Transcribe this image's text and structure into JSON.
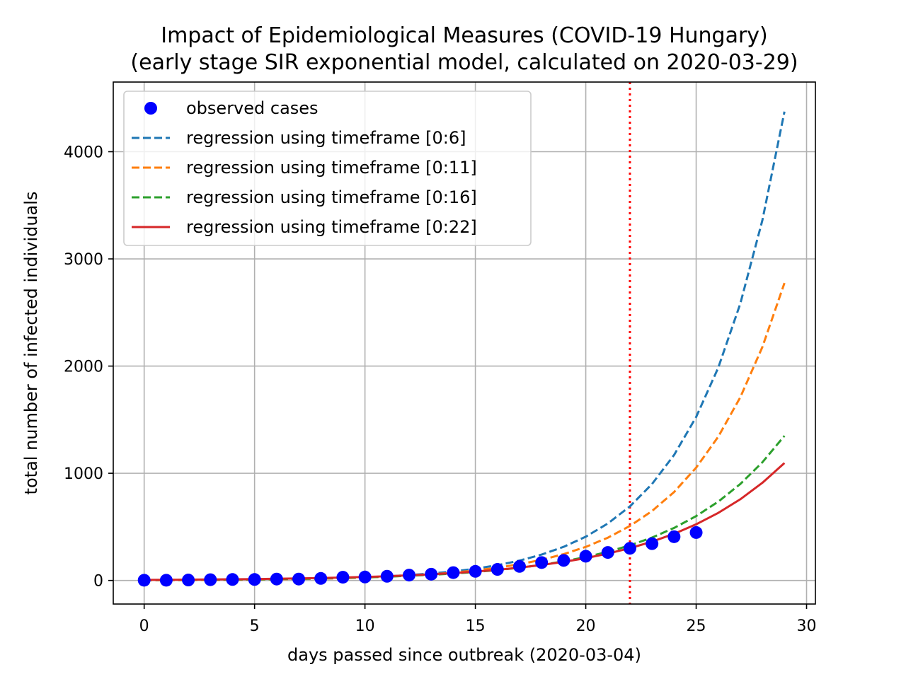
{
  "chart_data": {
    "type": "line",
    "title_line1": "Impact of Epidemiological Measures (COVID-19 Hungary)",
    "title_line2": "(early stage SIR exponential model, calculated on 2020-03-29)",
    "xlabel": "days passed since outbreak (2020-03-04)",
    "ylabel": "total number of infected individuals",
    "xlim": [
      -1.4,
      30.4
    ],
    "ylim": [
      -220,
      4650
    ],
    "xticks": [
      0,
      5,
      10,
      15,
      20,
      25,
      30
    ],
    "yticks": [
      0,
      1000,
      2000,
      3000,
      4000
    ],
    "grid": true,
    "legend_position": "upper-left",
    "vertical_marker": {
      "x": 22,
      "color": "#ff0000",
      "style": "dotted"
    },
    "observed": {
      "name": "observed cases",
      "color": "#0000ff",
      "x": [
        0,
        1,
        2,
        3,
        4,
        5,
        6,
        7,
        8,
        9,
        10,
        11,
        12,
        13,
        14,
        15,
        16,
        17,
        18,
        19,
        20,
        21,
        22,
        23,
        24,
        25
      ],
      "y": [
        2,
        2,
        4,
        7,
        9,
        9,
        13,
        13,
        19,
        30,
        32,
        39,
        50,
        58,
        73,
        85,
        103,
        131,
        167,
        187,
        226,
        261,
        300,
        343,
        408,
        447
      ]
    },
    "series": [
      {
        "name": "regression using timeframe [0:6]",
        "color": "#1f77b4",
        "style": "dashed",
        "a": 2.1,
        "b": 0.2635,
        "x_max": 29
      },
      {
        "name": "regression using timeframe [0:11]",
        "color": "#ff7f0e",
        "style": "dashed",
        "a": 2.45,
        "b": 0.2425,
        "x_max": 29
      },
      {
        "name": "regression using timeframe [0:16]",
        "color": "#2ca02c",
        "style": "dashed",
        "a": 3.8,
        "b": 0.2025,
        "x_max": 29
      },
      {
        "name": "regression using timeframe [0:22]",
        "color": "#d62728",
        "style": "solid",
        "a": 5.2,
        "b": 0.1845,
        "x_max": 29
      }
    ]
  }
}
